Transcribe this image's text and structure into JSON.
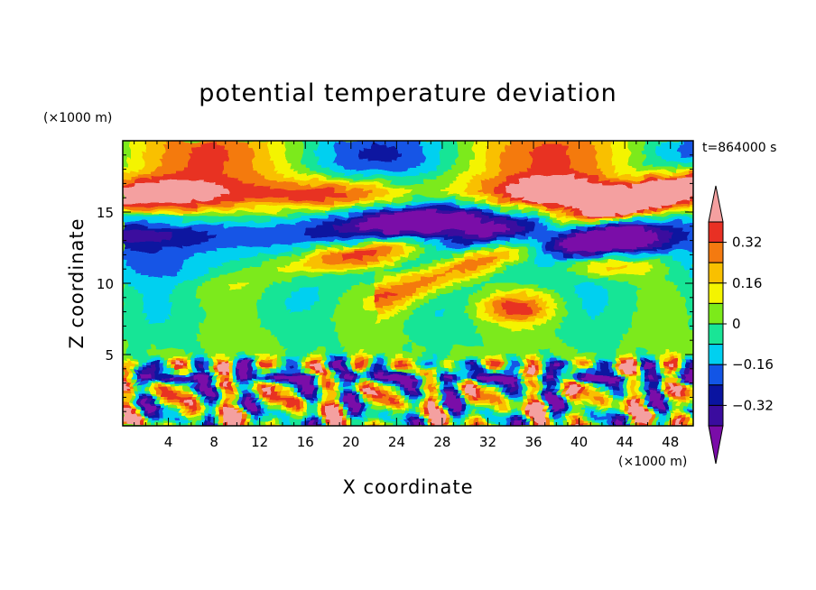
{
  "chart_data": {
    "type": "heatmap",
    "title": "potential temperature deviation",
    "xlabel": "X coordinate",
    "ylabel": "Z coordinate",
    "x_unit": "(×1000 m)",
    "y_unit": "(×1000 m)",
    "time_label": "t=864000 s",
    "xlim": [
      0,
      50
    ],
    "ylim": [
      0,
      20
    ],
    "x_ticks": [
      4,
      8,
      12,
      16,
      20,
      24,
      28,
      32,
      36,
      40,
      44,
      48
    ],
    "y_ticks": [
      5,
      10,
      15
    ],
    "colorbar": {
      "levels": [
        -0.4,
        -0.32,
        -0.24,
        -0.16,
        -0.08,
        0,
        0.08,
        0.16,
        0.24,
        0.32,
        0.4
      ],
      "tick_values": [
        0.32,
        0.16,
        0,
        -0.16,
        -0.32
      ],
      "tick_labels": [
        "0.32",
        "0.16",
        "0",
        "−0.16",
        "−0.32"
      ],
      "colors": [
        "#7a0ca8",
        "#3a0c9e",
        "#0a14a0",
        "#1255e6",
        "#00d0f0",
        "#19e596",
        "#7cea1a",
        "#f4f400",
        "#f9c000",
        "#f47a10",
        "#e83024",
        "#f4a0a0"
      ],
      "extend": "both"
    },
    "fields": [
      {
        "name": "background",
        "x": [
          0,
          50
        ],
        "z": [
          0,
          20
        ],
        "value": 0.04
      },
      {
        "name": "upper positive layer",
        "x": [
          0,
          50
        ],
        "z": [
          13.5,
          17.5
        ],
        "value": 0.42
      },
      {
        "name": "upper negative core",
        "x": [
          17,
          37
        ],
        "z": [
          13,
          16
        ],
        "value": -0.42
      },
      {
        "name": "negative band",
        "x": [
          0,
          50
        ],
        "z": [
          11,
          14
        ],
        "value": -0.34
      },
      {
        "name": "rising positive tongue",
        "x": [
          25,
          50
        ],
        "z": [
          10,
          17
        ],
        "value": 0.42
      },
      {
        "name": "mid positive blob",
        "x": [
          31,
          38
        ],
        "z": [
          7.5,
          9
        ],
        "value": 0.32
      },
      {
        "name": "mid-level cyan region",
        "x": [
          0,
          50
        ],
        "z": [
          5,
          11
        ],
        "value": -0.12
      },
      {
        "name": "lower turbulent layer",
        "x": [
          0,
          50
        ],
        "z": [
          0,
          5
        ],
        "value": 0.0
      }
    ]
  }
}
